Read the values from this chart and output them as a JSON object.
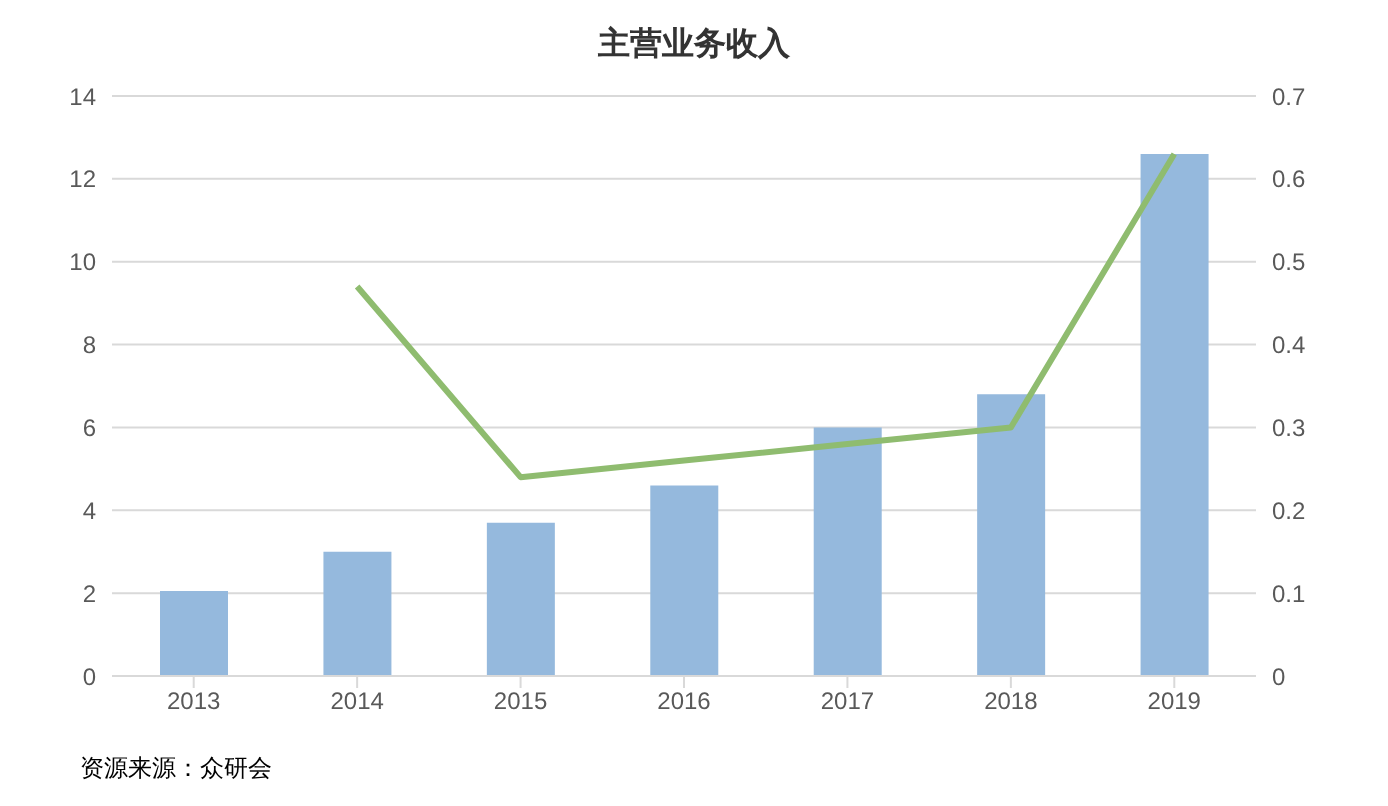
{
  "chart_data": {
    "type": "bar",
    "title": "主营业务收入",
    "categories": [
      "2013",
      "2014",
      "2015",
      "2016",
      "2017",
      "2018",
      "2019"
    ],
    "series": [
      {
        "color": "#95b9dd",
        "values": [
          2.05,
          3.0,
          3.7,
          4.6,
          6.0,
          6.8,
          12.6
        ]
      },
      {
        "type": "line",
        "axis": "y2",
        "color": "#8fbc6f",
        "values": [
          null,
          0.47,
          0.24,
          0.26,
          0.28,
          0.3,
          0.63
        ]
      }
    ],
    "ylim": [
      0,
      14
    ],
    "yticks": [
      0,
      2,
      4,
      6,
      8,
      10,
      12,
      14
    ],
    "y2lim": [
      0,
      0.7
    ],
    "y2ticks": [
      0,
      0.1,
      0.2,
      0.3,
      0.4,
      0.5,
      0.6,
      0.7
    ],
    "grid": "y",
    "legend": false,
    "marker": "none",
    "annotations": [
      "资源来源：众研会"
    ]
  }
}
